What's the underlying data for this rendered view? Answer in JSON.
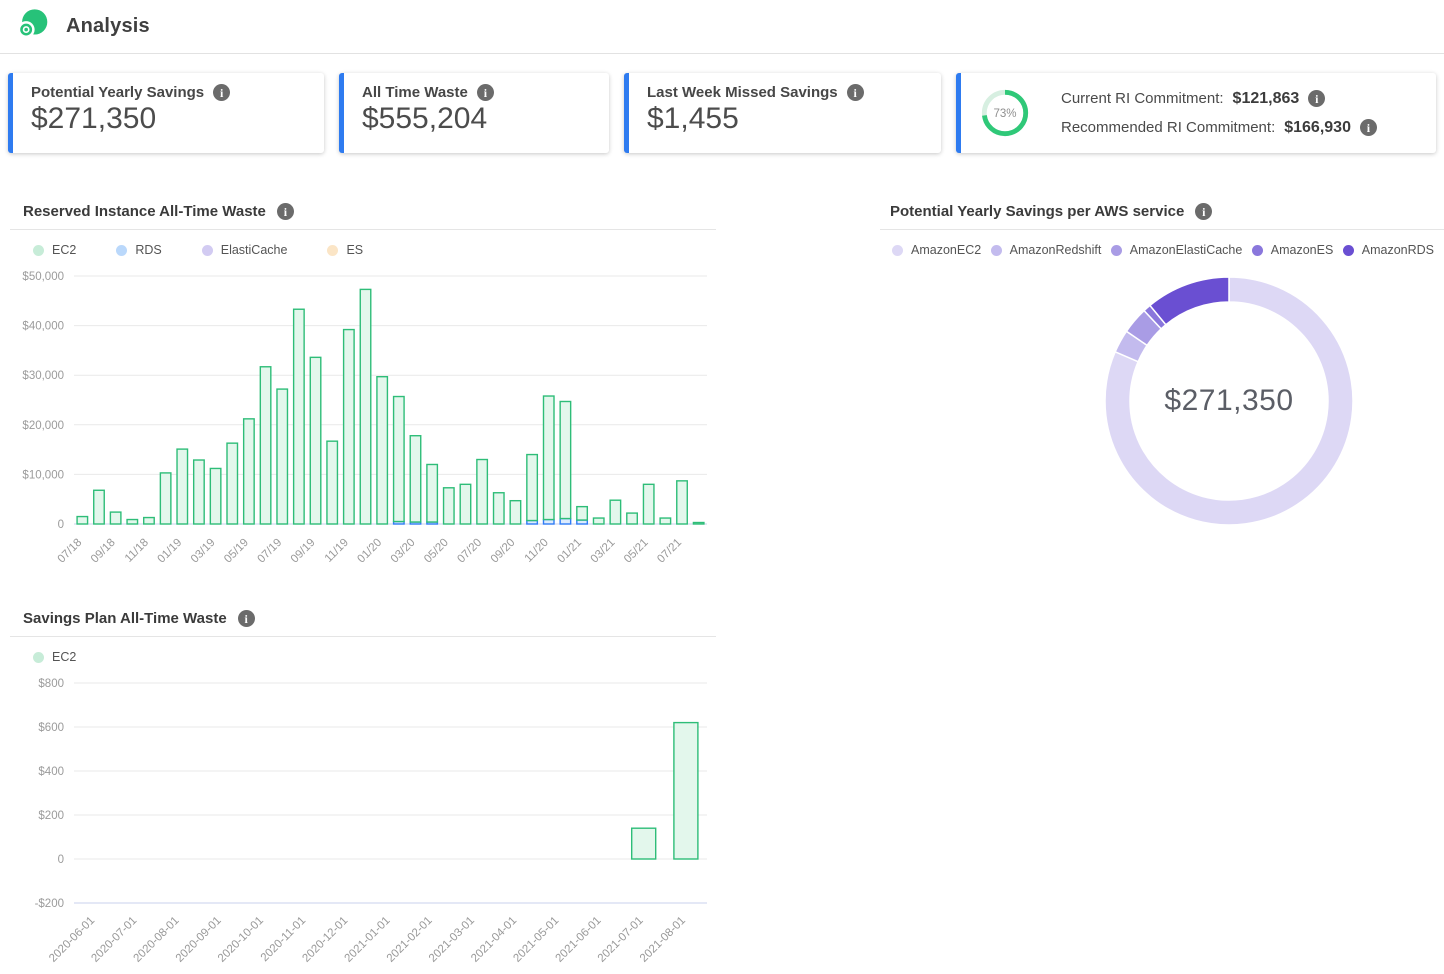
{
  "header": {
    "title": "Analysis",
    "logo": "prosperops-logo"
  },
  "stat_cards": [
    {
      "label": "Potential Yearly Savings",
      "value": "$271,350"
    },
    {
      "label": "All Time Waste",
      "value": "$555,204"
    },
    {
      "label": "Last Week Missed Savings",
      "value": "$1,455"
    },
    {
      "ring_percent": "73%",
      "rows": [
        {
          "label": "Current RI Commitment:",
          "value": "$121,863"
        },
        {
          "label": "Recommended RI Commitment:",
          "value": "$166,930"
        }
      ]
    }
  ],
  "colors": {
    "accent_blue": "#2e7bf0",
    "ring_green": "#2fc878",
    "ring_track": "#d7efe1",
    "ec2_green_stroke": "#2ebd78",
    "rds_blue_stroke": "#2f7cf6"
  },
  "chart_data": [
    {
      "type": "bar",
      "title": "Reserved Instance All-Time Waste",
      "stacked": true,
      "grid": true,
      "legend_position": "top",
      "categories": [
        "07/18",
        "08/18",
        "09/18",
        "10/18",
        "11/18",
        "12/18",
        "01/19",
        "02/19",
        "03/19",
        "04/19",
        "05/19",
        "06/19",
        "07/19",
        "08/19",
        "09/19",
        "10/19",
        "11/19",
        "12/19",
        "01/20",
        "02/20",
        "03/20",
        "04/20",
        "05/20",
        "06/20",
        "07/20",
        "08/20",
        "09/20",
        "10/20",
        "11/20",
        "12/20",
        "01/21",
        "02/21",
        "03/21",
        "04/21",
        "05/21",
        "06/21",
        "07/21",
        "08/21"
      ],
      "x_tick_every": 2,
      "ylim": [
        0,
        50000
      ],
      "y_tick_labels": [
        "$50,000",
        "$40,000",
        "$30,000",
        "$20,000",
        "$10,000",
        "0"
      ],
      "legend": [
        {
          "label": "EC2",
          "color": "#c7ecd8"
        },
        {
          "label": "RDS",
          "color": "#bad8fb"
        },
        {
          "label": "ElastiCache",
          "color": "#d2cbf2"
        },
        {
          "label": "ES",
          "color": "#fbe5c6"
        }
      ],
      "series": [
        {
          "name": "RDS",
          "fill": "#dcebfd",
          "stroke": "#2f7cf6",
          "values": [
            0,
            0,
            0,
            0,
            0,
            0,
            0,
            0,
            0,
            0,
            0,
            0,
            0,
            0,
            0,
            0,
            0,
            0,
            0,
            500,
            400,
            400,
            0,
            0,
            0,
            0,
            0,
            700,
            900,
            1100,
            800,
            0,
            0,
            0,
            0,
            0,
            0,
            0
          ]
        },
        {
          "name": "EC2",
          "fill": "#e3f7ec",
          "stroke": "#2ebd78",
          "values": [
            1500,
            6800,
            2400,
            900,
            1300,
            10300,
            15100,
            12900,
            11200,
            16300,
            21200,
            31700,
            27200,
            43300,
            33600,
            16700,
            39200,
            47300,
            29700,
            25200,
            17400,
            11600,
            7300,
            8000,
            13000,
            6300,
            4700,
            13300,
            24900,
            23600,
            2700,
            1200,
            4800,
            2200,
            8000,
            1200,
            8700,
            300
          ]
        }
      ]
    },
    {
      "type": "pie",
      "title": "Potential Yearly Savings per AWS service",
      "center_label": "$271,350",
      "total": 271350,
      "legend": [
        {
          "label": "AmazonEC2",
          "color": "#ddd8f5"
        },
        {
          "label": "AmazonRedshift",
          "color": "#c3bbee"
        },
        {
          "label": "AmazonElastiCache",
          "color": "#a99ce5"
        },
        {
          "label": "AmazonES",
          "color": "#8a77dc"
        },
        {
          "label": "AmazonRDS",
          "color": "#6a4fd2"
        }
      ],
      "segments": [
        {
          "name": "AmazonEC2",
          "color": "#ddd8f5",
          "pct": 81.5
        },
        {
          "name": "AmazonRedshift",
          "color": "#c3bbee",
          "pct": 3
        },
        {
          "name": "AmazonElastiCache",
          "color": "#a99ce5",
          "pct": 3.5
        },
        {
          "name": "AmazonES",
          "color": "#8a77dc",
          "pct": 1
        },
        {
          "name": "AmazonRDS",
          "color": "#6a4fd2",
          "pct": 11
        }
      ]
    },
    {
      "type": "bar",
      "title": "Savings Plan All-Time Waste",
      "stacked": false,
      "grid": true,
      "legend_position": "top",
      "categories": [
        "2020-06-01",
        "2020-07-01",
        "2020-08-01",
        "2020-09-01",
        "2020-10-01",
        "2020-11-01",
        "2020-12-01",
        "2021-01-01",
        "2021-02-01",
        "2021-03-01",
        "2021-04-01",
        "2021-05-01",
        "2021-06-01",
        "2021-07-01",
        "2021-08-01"
      ],
      "x_tick_every": 1,
      "ylim": [
        -200,
        800
      ],
      "y_tick_labels": [
        "$800",
        "$600",
        "$400",
        "$200",
        "0",
        "-$200"
      ],
      "legend": [
        {
          "label": "EC2",
          "color": "#c7ecd8"
        }
      ],
      "series": [
        {
          "name": "EC2",
          "fill": "#e3f7ec",
          "stroke": "#2ebd78",
          "values": [
            0,
            0,
            0,
            0,
            0,
            0,
            0,
            0,
            0,
            0,
            0,
            0,
            0,
            140,
            620
          ]
        }
      ]
    }
  ]
}
